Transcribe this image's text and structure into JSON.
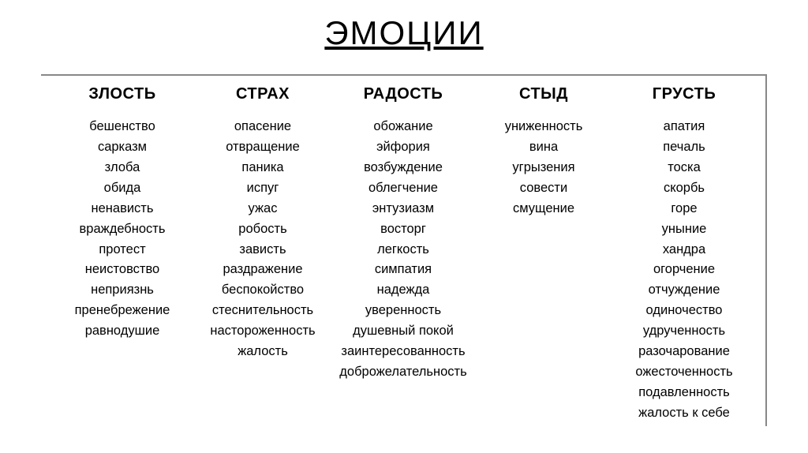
{
  "title": "ЭМОЦИИ",
  "columns": [
    {
      "header": "ЗЛОСТЬ",
      "items": [
        "бешенство",
        "сарказм",
        "злоба",
        "обида",
        "ненависть",
        "враждебность",
        "протест",
        "неистовство",
        "неприязнь",
        "пренебрежение",
        "равнодушие"
      ]
    },
    {
      "header": "СТРАХ",
      "items": [
        "опасение",
        "отвращение",
        "паника",
        "испуг",
        "ужас",
        "робость",
        "зависть",
        "раздражение",
        "беспокойство",
        "стеснительность",
        "настороженность",
        "жалость"
      ]
    },
    {
      "header": "РАДОСТЬ",
      "items": [
        "обожание",
        "эйфория",
        "возбуждение",
        "облегчение",
        "энтузиазм",
        "восторг",
        "легкость",
        "симпатия",
        "надежда",
        "уверенность",
        "душевный покой",
        "заинтересованность",
        "доброжелательность"
      ]
    },
    {
      "header": "СТЫД",
      "items": [
        "униженность",
        "вина",
        "угрызения",
        "совести",
        "смущение"
      ]
    },
    {
      "header": "ГРУСТЬ",
      "items": [
        "апатия",
        "печаль",
        "тоска",
        "скорбь",
        "горе",
        "уныние",
        "хандра",
        "огорчение",
        "отчуждение",
        "одиночество",
        "удрученность",
        "разочарование",
        "ожесточенность",
        "подавленность",
        "жалость к себе"
      ]
    }
  ]
}
